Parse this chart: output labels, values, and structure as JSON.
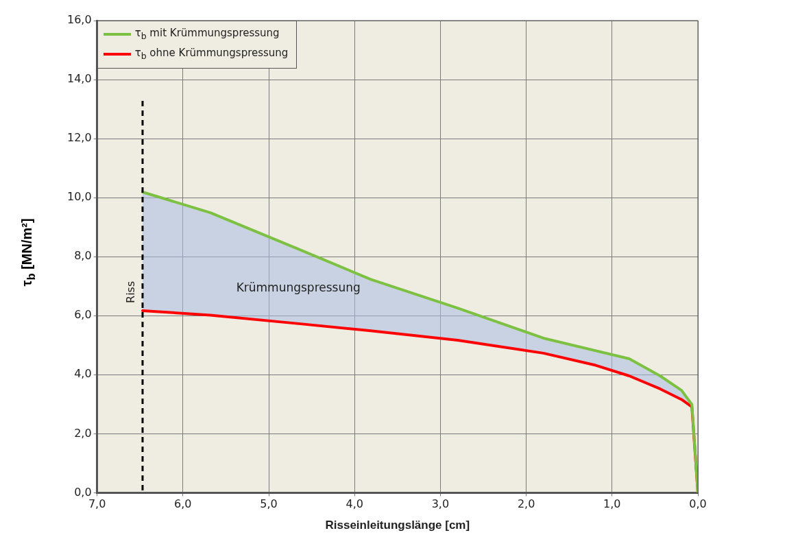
{
  "chart_data": {
    "type": "line",
    "xlabel": "Risseinleitungslänge [cm]",
    "ylabel": "τ$_{b}$ [MN/m²]",
    "xlim": [
      7,
      0
    ],
    "xticks": [
      {
        "value": 7,
        "label": "7,0"
      },
      {
        "value": 6,
        "label": "6,0"
      },
      {
        "value": 5,
        "label": "5,0"
      },
      {
        "value": 4,
        "label": "4,0"
      },
      {
        "value": 3,
        "label": "3,0"
      },
      {
        "value": 2,
        "label": "2,0"
      },
      {
        "value": 1,
        "label": "1,0"
      },
      {
        "value": 0,
        "label": "0,0"
      }
    ],
    "ylim": [
      0,
      16
    ],
    "yticks": [
      {
        "value": 0,
        "label": "0,0"
      },
      {
        "value": 2,
        "label": "2,0"
      },
      {
        "value": 4,
        "label": "4,0"
      },
      {
        "value": 6,
        "label": "6,0"
      },
      {
        "value": 8,
        "label": "8,0"
      },
      {
        "value": 10,
        "label": "10,0"
      },
      {
        "value": 12,
        "label": "12,0"
      },
      {
        "value": 14,
        "label": "14,0"
      },
      {
        "value": 16,
        "label": "16,0"
      }
    ],
    "grid": true,
    "legend": "top left",
    "marker": "none",
    "line_style": "solid",
    "series": [
      {
        "name": "τ$_{b}$ mit Krümmungspressung",
        "color": "#7cc142",
        "x": [
          6.47,
          5.68,
          4.65,
          3.81,
          2.8,
          1.8,
          0.8,
          0.44,
          0.19,
          0.07,
          0
        ],
        "values": [
          10.19,
          9.49,
          8.25,
          7.23,
          6.26,
          5.24,
          4.54,
          3.96,
          3.47,
          2.99,
          0
        ]
      },
      {
        "name": "τ$_{b}$ ohne Krümmungspressung",
        "color": "#ff0000",
        "x": [
          6.47,
          5.68,
          4.65,
          3.81,
          2.8,
          1.8,
          1.19,
          0.8,
          0.44,
          0.19,
          0.07,
          0
        ],
        "values": [
          6.17,
          6.02,
          5.73,
          5.49,
          5.17,
          4.73,
          4.32,
          3.96,
          3.52,
          3.16,
          2.91,
          0
        ]
      }
    ],
    "ref_lines": [
      {
        "axis": "x",
        "value": 6.47,
        "label": "Riss",
        "color": "#000000",
        "line_style": "dashed"
      }
    ],
    "annotations": [
      "Krümmungspressung"
    ]
  }
}
